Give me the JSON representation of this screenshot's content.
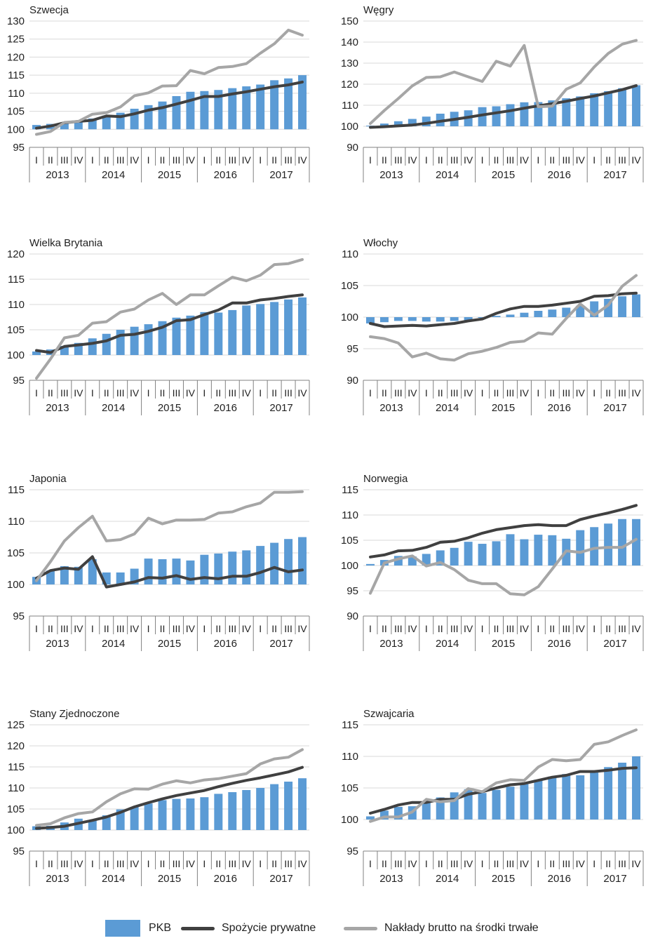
{
  "colors": {
    "pkb": "#5b9bd5",
    "consumption": "#404040",
    "investment": "#a6a6a6"
  },
  "legend": {
    "pkb": "PKB",
    "consumption": "Spożycie prywatne",
    "investment": "Nakłady brutto na środki trwałe"
  },
  "chart_data": [
    {
      "type": "bar",
      "title": "Szwecja",
      "x": [
        "2013 I",
        "2013 II",
        "2013 III",
        "2013 IV",
        "2014 I",
        "2014 II",
        "2014 III",
        "2014 IV",
        "2015 I",
        "2015 II",
        "2015 III",
        "2015 IV",
        "2016 I",
        "2016 II",
        "2016 III",
        "2016 IV",
        "2017 I",
        "2017 II",
        "2017 III",
        "2017 IV"
      ],
      "quarter_labels": [
        "I",
        "II",
        "III",
        "IV"
      ],
      "year_labels": [
        "2013",
        "2014",
        "2015",
        "2016",
        "2017"
      ],
      "yticks": [
        95,
        100,
        105,
        110,
        115,
        120,
        125,
        130
      ],
      "ylim": [
        95,
        130
      ],
      "series": [
        {
          "name": "PKB",
          "type": "bar",
          "values": [
            101.2,
            101.5,
            101.9,
            102.2,
            103.0,
            103.8,
            104.6,
            105.7,
            106.7,
            107.7,
            109.2,
            110.4,
            110.6,
            110.9,
            111.4,
            111.9,
            112.4,
            113.6,
            114.1,
            115.0
          ]
        },
        {
          "name": "Spożycie prywatne",
          "type": "line",
          "values": [
            100.3,
            100.9,
            101.8,
            102.2,
            102.5,
            103.7,
            103.5,
            104.3,
            105.3,
            106.0,
            107.0,
            108.0,
            109.1,
            109.1,
            109.8,
            110.4,
            111.1,
            111.8,
            112.3,
            113.1
          ]
        },
        {
          "name": "Nakłady brutto na środki trwałe",
          "type": "line",
          "values": [
            98.6,
            99.4,
            101.9,
            102.2,
            104.2,
            104.6,
            106.2,
            109.3,
            110.1,
            112.0,
            112.1,
            116.3,
            115.4,
            117.1,
            117.4,
            118.2,
            121.1,
            123.7,
            127.5,
            126.1
          ]
        }
      ]
    },
    {
      "type": "bar",
      "title": "Węgry",
      "x": [
        "2013 I",
        "2013 II",
        "2013 III",
        "2013 IV",
        "2014 I",
        "2014 II",
        "2014 III",
        "2014 IV",
        "2015 I",
        "2015 II",
        "2015 III",
        "2015 IV",
        "2016 I",
        "2016 II",
        "2016 III",
        "2016 IV",
        "2017 I",
        "2017 II",
        "2017 III",
        "2017 IV"
      ],
      "quarter_labels": [
        "I",
        "II",
        "III",
        "IV"
      ],
      "year_labels": [
        "2013",
        "2014",
        "2015",
        "2016",
        "2017"
      ],
      "yticks": [
        90,
        100,
        110,
        120,
        130,
        140,
        150
      ],
      "ylim": [
        90,
        150
      ],
      "series": [
        {
          "name": "PKB",
          "type": "bar",
          "values": [
            100.3,
            101.3,
            102.4,
            103.5,
            104.6,
            106.0,
            106.9,
            107.6,
            109.1,
            109.5,
            110.5,
            111.4,
            111.5,
            112.3,
            113.3,
            114.2,
            115.7,
            116.7,
            118.1,
            119.5
          ]
        },
        {
          "name": "Spożycie prywatne",
          "type": "line",
          "values": [
            99.5,
            99.8,
            100.2,
            100.6,
            101.4,
            102.4,
            103.3,
            104.3,
            105.4,
            106.4,
            107.4,
            108.6,
            109.7,
            110.7,
            111.9,
            113.2,
            114.4,
            115.9,
            117.4,
            119.3
          ]
        },
        {
          "name": "Nakłady brutto na środki trwałe",
          "type": "line",
          "values": [
            101.3,
            107.5,
            113.2,
            119.2,
            123.2,
            123.5,
            125.8,
            123.5,
            121.3,
            130.9,
            128.6,
            138.4,
            109.3,
            109.6,
            117.6,
            120.6,
            128.2,
            134.6,
            139.0,
            140.8
          ]
        }
      ]
    },
    {
      "type": "bar",
      "title": "Wielka Brytania",
      "x": [
        "2013 I",
        "2013 II",
        "2013 III",
        "2013 IV",
        "2014 I",
        "2014 II",
        "2014 III",
        "2014 IV",
        "2015 I",
        "2015 II",
        "2015 III",
        "2015 IV",
        "2016 I",
        "2016 II",
        "2016 III",
        "2016 IV",
        "2017 I",
        "2017 II",
        "2017 III",
        "2017 IV"
      ],
      "quarter_labels": [
        "I",
        "II",
        "III",
        "IV"
      ],
      "year_labels": [
        "2013",
        "2014",
        "2015",
        "2016",
        "2017"
      ],
      "yticks": [
        95,
        100,
        105,
        110,
        115,
        120
      ],
      "ylim": [
        95,
        120
      ],
      "series": [
        {
          "name": "PKB",
          "type": "bar",
          "values": [
            100.7,
            101.1,
            101.8,
            102.4,
            103.3,
            104.2,
            105.0,
            105.6,
            106.1,
            106.7,
            107.4,
            107.8,
            108.5,
            108.4,
            108.9,
            109.8,
            110.1,
            110.5,
            111.0,
            111.4
          ]
        },
        {
          "name": "Spożycie prywatne",
          "type": "line",
          "values": [
            100.9,
            100.5,
            101.7,
            102.0,
            102.3,
            102.8,
            103.9,
            104.1,
            104.7,
            105.5,
            106.8,
            107.0,
            108.0,
            108.9,
            110.3,
            110.3,
            110.9,
            111.2,
            111.6,
            111.9
          ]
        },
        {
          "name": "Nakłady brutto na środki trwałe",
          "type": "line",
          "values": [
            95.4,
            99.2,
            103.4,
            103.9,
            106.3,
            106.6,
            108.5,
            109.1,
            110.9,
            112.2,
            110.0,
            111.9,
            111.9,
            113.7,
            115.4,
            114.7,
            115.8,
            117.9,
            118.1,
            118.9
          ]
        }
      ]
    },
    {
      "type": "bar",
      "title": "Włochy",
      "x": [
        "2013 I",
        "2013 II",
        "2013 III",
        "2013 IV",
        "2014 I",
        "2014 II",
        "2014 III",
        "2014 IV",
        "2015 I",
        "2015 II",
        "2015 III",
        "2015 IV",
        "2016 I",
        "2016 II",
        "2016 III",
        "2016 IV",
        "2017 I",
        "2017 II",
        "2017 III",
        "2017 IV"
      ],
      "quarter_labels": [
        "I",
        "II",
        "III",
        "IV"
      ],
      "year_labels": [
        "2013",
        "2014",
        "2015",
        "2016",
        "2017"
      ],
      "yticks": [
        90,
        95,
        100,
        105,
        110
      ],
      "ylim": [
        90,
        110
      ],
      "series": [
        {
          "name": "PKB",
          "type": "bar",
          "values": [
            99.0,
            99.2,
            99.4,
            99.4,
            99.3,
            99.3,
            99.4,
            99.5,
            100.0,
            100.2,
            100.4,
            100.7,
            101.0,
            101.2,
            101.5,
            101.8,
            102.5,
            102.9,
            103.3,
            103.6
          ]
        },
        {
          "name": "Spożycie prywatne",
          "type": "line",
          "values": [
            99.0,
            98.5,
            98.6,
            98.7,
            98.6,
            98.8,
            99.0,
            99.4,
            99.7,
            100.6,
            101.3,
            101.7,
            101.7,
            101.9,
            102.2,
            102.5,
            103.3,
            103.4,
            103.7,
            103.8
          ]
        },
        {
          "name": "Nakłady brutto na środki trwałe",
          "type": "line",
          "values": [
            96.9,
            96.6,
            95.9,
            93.7,
            94.3,
            93.4,
            93.2,
            94.2,
            94.6,
            95.2,
            96.0,
            96.2,
            97.5,
            97.3,
            99.8,
            102.1,
            100.3,
            101.9,
            104.9,
            106.6
          ]
        }
      ]
    },
    {
      "type": "bar",
      "title": "Japonia",
      "x": [
        "2013 I",
        "2013 II",
        "2013 III",
        "2013 IV",
        "2014 I",
        "2014 II",
        "2014 III",
        "2014 IV",
        "2015 I",
        "2015 II",
        "2015 III",
        "2015 IV",
        "2016 I",
        "2016 II",
        "2016 III",
        "2016 IV",
        "2017 I",
        "2017 II",
        "2017 III",
        "2017 IV"
      ],
      "quarter_labels": [
        "I",
        "II",
        "III",
        "IV"
      ],
      "year_labels": [
        "2013",
        "2014",
        "2015",
        "2016",
        "2017"
      ],
      "yticks": [
        95,
        100,
        105,
        110,
        115
      ],
      "ylim": [
        95,
        115
      ],
      "series": [
        {
          "name": "PKB",
          "type": "bar",
          "values": [
            101.2,
            102.2,
            102.9,
            102.8,
            104.0,
            101.9,
            101.9,
            102.5,
            104.1,
            104.0,
            104.1,
            103.8,
            104.7,
            104.9,
            105.2,
            105.4,
            106.1,
            106.6,
            107.2,
            107.5
          ]
        },
        {
          "name": "Spożycie prywatne",
          "type": "line",
          "values": [
            101.0,
            102.2,
            102.6,
            102.4,
            104.4,
            99.6,
            100.0,
            100.4,
            101.1,
            101.0,
            101.4,
            100.8,
            101.1,
            100.9,
            101.3,
            101.3,
            101.9,
            102.7,
            102.0,
            102.3
          ]
        },
        {
          "name": "Nakłady brutto na środki trwałe",
          "type": "line",
          "values": [
            100.6,
            103.6,
            106.9,
            109.0,
            110.8,
            106.9,
            107.1,
            108.0,
            110.5,
            109.6,
            110.2,
            110.2,
            110.3,
            111.3,
            111.5,
            112.3,
            112.9,
            114.6,
            114.6,
            114.7
          ]
        }
      ]
    },
    {
      "type": "bar",
      "title": "Norwegia",
      "x": [
        "2013 I",
        "2013 II",
        "2013 III",
        "2013 IV",
        "2014 I",
        "2014 II",
        "2014 III",
        "2014 IV",
        "2015 I",
        "2015 II",
        "2015 III",
        "2015 IV",
        "2016 I",
        "2016 II",
        "2016 III",
        "2016 IV",
        "2017 I",
        "2017 II",
        "2017 III",
        "2017 IV"
      ],
      "quarter_labels": [
        "I",
        "II",
        "III",
        "IV"
      ],
      "year_labels": [
        "2013",
        "2014",
        "2015",
        "2016",
        "2017"
      ],
      "yticks": [
        90,
        95,
        100,
        105,
        110,
        115
      ],
      "ylim": [
        90,
        115
      ],
      "series": [
        {
          "name": "PKB",
          "type": "bar",
          "values": [
            100.3,
            101.1,
            101.9,
            101.8,
            102.3,
            103.0,
            103.5,
            104.7,
            104.3,
            104.8,
            106.2,
            105.2,
            106.1,
            106.0,
            105.3,
            107.0,
            107.6,
            108.3,
            109.2,
            109.2
          ]
        },
        {
          "name": "Spożycie prywatne",
          "type": "line",
          "values": [
            101.7,
            102.1,
            102.9,
            103.0,
            103.6,
            104.6,
            104.8,
            105.5,
            106.4,
            107.1,
            107.5,
            107.9,
            108.1,
            107.9,
            107.9,
            109.1,
            109.8,
            110.4,
            111.1,
            111.9
          ]
        },
        {
          "name": "Nakłady brutto na środki trwałe",
          "type": "line",
          "values": [
            94.5,
            100.5,
            101.3,
            101.9,
            99.9,
            100.6,
            99.2,
            97.1,
            96.4,
            96.4,
            94.4,
            94.2,
            95.8,
            99.3,
            102.9,
            102.6,
            103.4,
            103.6,
            103.6,
            105.2
          ]
        }
      ]
    },
    {
      "type": "bar",
      "title": "Stany Zjednoczone",
      "x": [
        "2013 I",
        "2013 II",
        "2013 III",
        "2013 IV",
        "2014 I",
        "2014 II",
        "2014 III",
        "2014 IV",
        "2015 I",
        "2015 II",
        "2015 III",
        "2015 IV",
        "2016 I",
        "2016 II",
        "2016 III",
        "2016 IV",
        "2017 I",
        "2017 II",
        "2017 III",
        "2017 IV"
      ],
      "quarter_labels": [
        "I",
        "II",
        "III",
        "IV"
      ],
      "year_labels": [
        "2013",
        "2014",
        "2015",
        "2016",
        "2017"
      ],
      "yticks": [
        95,
        100,
        105,
        110,
        115,
        120,
        125
      ],
      "ylim": [
        95,
        125
      ],
      "series": [
        {
          "name": "PKB",
          "type": "bar",
          "values": [
            100.9,
            101.0,
            101.8,
            102.7,
            102.4,
            103.5,
            104.9,
            105.5,
            106.3,
            107.1,
            107.4,
            107.5,
            107.8,
            108.6,
            109.0,
            109.5,
            110.0,
            110.9,
            111.5,
            112.3
          ]
        },
        {
          "name": "Spożycie prywatne",
          "type": "line",
          "values": [
            100.4,
            100.6,
            100.9,
            101.6,
            102.3,
            103.1,
            104.2,
            105.5,
            106.5,
            107.4,
            108.2,
            108.8,
            109.4,
            110.3,
            111.1,
            111.8,
            112.4,
            113.1,
            113.8,
            114.9
          ]
        },
        {
          "name": "Nakłady brutto na środki trwałe",
          "type": "line",
          "values": [
            101.1,
            101.5,
            102.9,
            103.9,
            104.3,
            106.7,
            108.6,
            109.8,
            109.7,
            110.9,
            111.7,
            111.2,
            111.9,
            112.2,
            112.8,
            113.4,
            115.7,
            116.9,
            117.3,
            119.1
          ]
        }
      ]
    },
    {
      "type": "bar",
      "title": "Szwajcaria",
      "x": [
        "2013 I",
        "2013 II",
        "2013 III",
        "2013 IV",
        "2014 I",
        "2014 II",
        "2014 III",
        "2014 IV",
        "2015 I",
        "2015 II",
        "2015 III",
        "2015 IV",
        "2016 I",
        "2016 II",
        "2016 III",
        "2016 IV",
        "2017 I",
        "2017 II",
        "2017 III",
        "2017 IV"
      ],
      "quarter_labels": [
        "I",
        "II",
        "III",
        "IV"
      ],
      "year_labels": [
        "2013",
        "2014",
        "2015",
        "2016",
        "2017"
      ],
      "yticks": [
        95,
        100,
        105,
        110,
        115
      ],
      "ylim": [
        95,
        115
      ],
      "series": [
        {
          "name": "PKB",
          "type": "bar",
          "values": [
            100.5,
            101.4,
            102.0,
            102.1,
            102.9,
            103.5,
            104.3,
            104.8,
            104.2,
            104.7,
            105.2,
            105.6,
            106.3,
            106.8,
            107.2,
            107.0,
            107.6,
            108.3,
            109.0,
            110.0
          ]
        },
        {
          "name": "Spożycie prywatne",
          "type": "line",
          "values": [
            101.0,
            101.6,
            102.3,
            102.7,
            102.7,
            103.2,
            103.2,
            104.0,
            104.4,
            105.0,
            105.5,
            105.7,
            106.2,
            106.7,
            107.0,
            107.6,
            107.6,
            107.8,
            108.1,
            108.2
          ]
        },
        {
          "name": "Nakłady brutto na środki trwałe",
          "type": "line",
          "values": [
            99.7,
            100.4,
            100.4,
            101.2,
            103.2,
            102.8,
            103.0,
            104.9,
            104.4,
            105.8,
            106.3,
            106.2,
            108.3,
            109.5,
            109.3,
            109.5,
            111.9,
            112.3,
            113.3,
            114.2
          ]
        }
      ]
    }
  ]
}
